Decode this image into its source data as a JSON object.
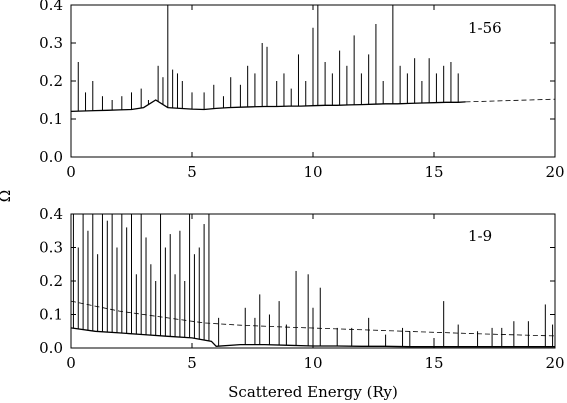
{
  "chart_data": [
    {
      "type": "line",
      "panel_label": "1-56",
      "xlim": [
        0,
        20
      ],
      "ylim": [
        0,
        0.4
      ],
      "xticks": [
        "0",
        "5",
        "10",
        "15",
        "20"
      ],
      "yticks": [
        "0.0",
        "0.1",
        "0.2",
        "0.3",
        "0.4"
      ],
      "series": [
        {
          "style": "solid",
          "x": [
            0,
            0.5,
            1,
            1.5,
            2,
            2.5,
            3,
            3.5,
            4,
            4.5,
            5,
            5.5,
            6,
            6.5,
            7,
            7.5,
            8,
            8.5,
            9,
            9.5,
            10,
            10.5,
            11,
            11.5,
            12,
            12.5,
            13,
            13.5,
            14,
            14.5,
            15,
            15.5,
            16,
            16.3
          ],
          "y": [
            0.12,
            0.121,
            0.122,
            0.123,
            0.124,
            0.125,
            0.13,
            0.15,
            0.13,
            0.128,
            0.126,
            0.125,
            0.128,
            0.13,
            0.131,
            0.132,
            0.133,
            0.133,
            0.134,
            0.134,
            0.135,
            0.136,
            0.136,
            0.137,
            0.138,
            0.139,
            0.14,
            0.14,
            0.141,
            0.142,
            0.143,
            0.144,
            0.144,
            0.145
          ]
        },
        {
          "style": "dashed",
          "x": [
            16.3,
            20
          ],
          "y": [
            0.145,
            0.152
          ]
        }
      ],
      "resonance_peaks": {
        "x": [
          0.3,
          0.6,
          0.9,
          1.3,
          1.7,
          2.1,
          2.5,
          2.9,
          3.2,
          3.6,
          3.8,
          4.0,
          4.2,
          4.4,
          4.6,
          5.0,
          5.5,
          5.9,
          6.3,
          6.6,
          7.0,
          7.3,
          7.6,
          7.9,
          8.1,
          8.5,
          8.8,
          9.1,
          9.4,
          9.7,
          10.0,
          10.2,
          10.5,
          10.8,
          11.1,
          11.4,
          11.7,
          12.0,
          12.3,
          12.6,
          12.9,
          13.3,
          13.6,
          13.9,
          14.2,
          14.5,
          14.8,
          15.1,
          15.4,
          15.7,
          16.0
        ],
        "y": [
          0.25,
          0.17,
          0.2,
          0.16,
          0.15,
          0.16,
          0.17,
          0.18,
          0.15,
          0.24,
          0.21,
          0.4,
          0.23,
          0.22,
          0.2,
          0.17,
          0.17,
          0.19,
          0.16,
          0.21,
          0.19,
          0.24,
          0.22,
          0.3,
          0.29,
          0.2,
          0.22,
          0.18,
          0.27,
          0.2,
          0.34,
          0.4,
          0.25,
          0.22,
          0.28,
          0.24,
          0.32,
          0.22,
          0.27,
          0.35,
          0.2,
          0.4,
          0.24,
          0.22,
          0.26,
          0.2,
          0.26,
          0.22,
          0.24,
          0.25,
          0.22
        ]
      }
    },
    {
      "type": "line",
      "panel_label": "1-9",
      "xlim": [
        0,
        20
      ],
      "ylim": [
        0,
        0.4
      ],
      "xticks": [
        "0",
        "5",
        "10",
        "15",
        "20"
      ],
      "yticks": [
        "0.0",
        "0.1",
        "0.2",
        "0.3",
        "0.4"
      ],
      "xlabel": "Scattered Energy (Ry)",
      "series": [
        {
          "style": "solid",
          "x": [
            0,
            1,
            2,
            3,
            4,
            5,
            5.8,
            6,
            7,
            8,
            9,
            10,
            11,
            12,
            13,
            14,
            15,
            16,
            17,
            18,
            19,
            20
          ],
          "y": [
            0.06,
            0.05,
            0.045,
            0.04,
            0.035,
            0.03,
            0.02,
            0.005,
            0.01,
            0.01,
            0.008,
            0.006,
            0.006,
            0.005,
            0.005,
            0.004,
            0.004,
            0.004,
            0.004,
            0.004,
            0.004,
            0.004
          ]
        },
        {
          "style": "dashed",
          "x": [
            0,
            2,
            4,
            5.5,
            7,
            9,
            11,
            13,
            15,
            17,
            19,
            20
          ],
          "y": [
            0.14,
            0.11,
            0.09,
            0.075,
            0.068,
            0.062,
            0.057,
            0.052,
            0.047,
            0.042,
            0.038,
            0.036
          ]
        }
      ],
      "resonance_peaks": {
        "x": [
          0.1,
          0.3,
          0.5,
          0.7,
          0.9,
          1.1,
          1.3,
          1.5,
          1.7,
          1.9,
          2.1,
          2.3,
          2.5,
          2.7,
          2.9,
          3.1,
          3.3,
          3.5,
          3.7,
          3.9,
          4.1,
          4.3,
          4.5,
          4.7,
          4.9,
          5.1,
          5.3,
          5.5,
          5.7,
          6.1,
          7.2,
          7.6,
          7.8,
          8.2,
          8.6,
          8.9,
          9.3,
          9.8,
          10.0,
          10.3,
          11.0,
          11.6,
          12.3,
          13.0,
          13.7,
          14.0,
          15.0,
          15.4,
          16.0,
          16.8,
          17.4,
          17.8,
          18.3,
          18.9,
          19.6,
          19.9
        ],
        "y": [
          0.4,
          0.3,
          0.4,
          0.35,
          0.4,
          0.28,
          0.4,
          0.38,
          0.4,
          0.3,
          0.4,
          0.36,
          0.4,
          0.22,
          0.4,
          0.33,
          0.25,
          0.2,
          0.4,
          0.3,
          0.34,
          0.22,
          0.35,
          0.2,
          0.4,
          0.28,
          0.3,
          0.37,
          0.4,
          0.09,
          0.12,
          0.09,
          0.16,
          0.1,
          0.14,
          0.07,
          0.23,
          0.22,
          0.12,
          0.18,
          0.06,
          0.06,
          0.09,
          0.04,
          0.06,
          0.05,
          0.03,
          0.14,
          0.07,
          0.05,
          0.06,
          0.06,
          0.08,
          0.08,
          0.13,
          0.07
        ]
      }
    }
  ],
  "shared_ylabel": "Ω"
}
